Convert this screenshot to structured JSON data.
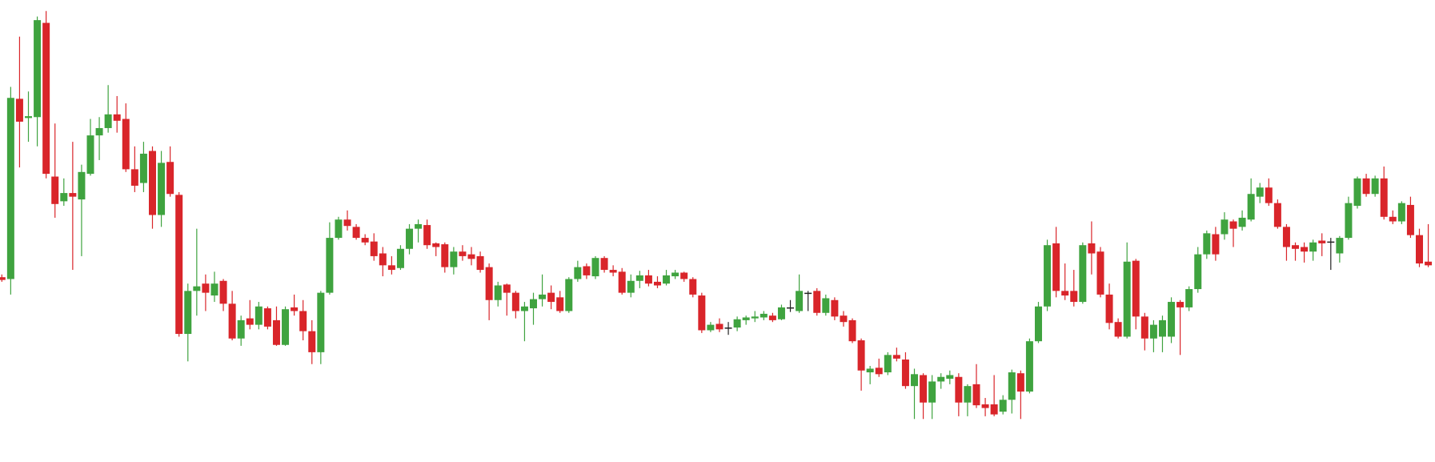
{
  "chart_data": {
    "type": "candlestick",
    "up_color": "#3fa33f",
    "down_color": "#d9252a",
    "doji_color": "#222222",
    "ylim": [
      0,
      505
    ],
    "open": [
      202,
      200,
      397,
      376,
      377,
      480,
      312,
      285,
      294,
      287,
      315,
      357,
      365,
      380,
      375,
      320,
      305,
      340,
      270,
      328,
      292,
      140,
      187,
      195,
      182,
      198,
      173,
      135,
      157,
      150,
      168,
      155,
      128,
      169,
      165,
      143,
      120,
      185,
      245,
      265,
      257,
      245,
      241,
      228,
      215,
      212,
      233,
      255,
      259,
      239,
      238,
      213,
      230,
      227,
      225,
      213,
      177,
      194,
      185,
      165,
      168,
      178,
      185,
      180,
      165,
      200,
      214,
      203,
      223,
      210,
      208,
      185,
      198,
      204,
      197,
      195,
      203,
      207,
      200,
      182,
      144,
      151,
      147,
      147,
      155,
      157,
      158,
      160,
      156,
      169,
      165,
      185,
      187,
      163,
      177,
      160,
      155,
      133,
      98,
      103,
      98,
      117,
      112,
      83,
      95,
      65,
      88,
      91,
      93,
      65,
      85,
      63,
      63,
      55,
      68,
      97,
      77,
      132,
      170,
      239,
      187,
      187,
      175,
      239,
      230,
      183,
      153,
      137,
      220,
      159,
      135,
      137,
      137,
      175,
      169,
      189,
      227,
      249,
      249,
      263,
      257,
      265,
      290,
      300,
      283,
      257,
      237,
      235,
      230,
      242,
      241,
      228,
      245,
      280,
      310,
      293,
      310,
      268,
      263,
      281,
      248,
      219
    ],
    "high": [
      205,
      410,
      465,
      405,
      487,
      493,
      370,
      310,
      350,
      325,
      375,
      377,
      412,
      400,
      392,
      345,
      350,
      345,
      340,
      345,
      295,
      195,
      255,
      205,
      208,
      200,
      187,
      160,
      177,
      175,
      170,
      170,
      170,
      183,
      177,
      155,
      187,
      262,
      268,
      275,
      260,
      249,
      250,
      235,
      225,
      237,
      260,
      265,
      265,
      240,
      240,
      235,
      237,
      235,
      230,
      217,
      197,
      195,
      187,
      175,
      185,
      205,
      193,
      187,
      202,
      220,
      217,
      225,
      225,
      215,
      212,
      205,
      209,
      210,
      203,
      210,
      210,
      208,
      202,
      185,
      153,
      157,
      153,
      159,
      160,
      165,
      165,
      163,
      172,
      177,
      205,
      187,
      190,
      183,
      180,
      165,
      157,
      135,
      105,
      113,
      120,
      125,
      120,
      102,
      97,
      95,
      97,
      100,
      97,
      85,
      107,
      70,
      95,
      73,
      101,
      100,
      135,
      175,
      243,
      257,
      217,
      210,
      240,
      263,
      235,
      195,
      157,
      240,
      222,
      163,
      155,
      160,
      180,
      177,
      192,
      235,
      253,
      257,
      273,
      265,
      275,
      310,
      305,
      310,
      287,
      260,
      240,
      240,
      243,
      250,
      245,
      247,
      290,
      312,
      315,
      313,
      323,
      275,
      285,
      290,
      255,
      260
    ],
    "low": [
      197,
      183,
      322,
      350,
      345,
      310,
      267,
      280,
      210,
      225,
      313,
      330,
      360,
      360,
      317,
      295,
      295,
      255,
      257,
      290,
      137,
      110,
      160,
      165,
      175,
      165,
      133,
      127,
      145,
      145,
      145,
      127,
      127,
      160,
      133,
      107,
      107,
      183,
      243,
      253,
      243,
      237,
      220,
      203,
      205,
      210,
      227,
      240,
      233,
      225,
      207,
      205,
      220,
      215,
      207,
      155,
      170,
      160,
      157,
      132,
      150,
      170,
      167,
      163,
      163,
      197,
      200,
      200,
      207,
      203,
      183,
      180,
      190,
      192,
      190,
      193,
      200,
      197,
      180,
      141,
      142,
      142,
      139,
      143,
      150,
      153,
      155,
      153,
      155,
      164,
      163,
      165,
      160,
      160,
      155,
      148,
      130,
      78,
      85,
      93,
      95,
      110,
      80,
      47,
      47,
      47,
      80,
      85,
      50,
      50,
      59,
      50,
      50,
      52,
      53,
      47,
      75,
      130,
      165,
      180,
      177,
      170,
      173,
      205,
      180,
      145,
      135,
      135,
      145,
      122,
      120,
      120,
      130,
      117,
      165,
      185,
      222,
      220,
      243,
      235,
      253,
      263,
      283,
      280,
      255,
      220,
      220,
      218,
      220,
      225,
      210,
      218,
      243,
      277,
      290,
      290,
      265,
      260,
      260,
      245,
      213,
      213
    ],
    "close": [
      199,
      398,
      372,
      378,
      483,
      315,
      282,
      294,
      290,
      317,
      357,
      365,
      380,
      373,
      320,
      302,
      337,
      270,
      327,
      293,
      140,
      187,
      192,
      185,
      195,
      173,
      135,
      155,
      150,
      170,
      148,
      128,
      167,
      165,
      143,
      120,
      185,
      245,
      265,
      258,
      245,
      240,
      225,
      215,
      210,
      233,
      255,
      260,
      237,
      235,
      213,
      230,
      225,
      222,
      210,
      177,
      193,
      185,
      165,
      170,
      178,
      183,
      175,
      165,
      200,
      213,
      204,
      223,
      210,
      207,
      185,
      198,
      204,
      195,
      193,
      204,
      207,
      200,
      183,
      144,
      150,
      145,
      147,
      156,
      158,
      159,
      162,
      155,
      169,
      169,
      187,
      185,
      163,
      179,
      159,
      153,
      132,
      100,
      102,
      96,
      117,
      113,
      83,
      96,
      65,
      88,
      93,
      95,
      65,
      83,
      62,
      59,
      52,
      68,
      98,
      77,
      132,
      170,
      237,
      187,
      182,
      175,
      237,
      228,
      183,
      152,
      137,
      219,
      159,
      135,
      150,
      155,
      175,
      169,
      189,
      227,
      250,
      227,
      265,
      255,
      267,
      293,
      300,
      283,
      257,
      235,
      233,
      230,
      240,
      239,
      241,
      245,
      283,
      310,
      293,
      310,
      268,
      263,
      283,
      248,
      217,
      215
    ]
  }
}
